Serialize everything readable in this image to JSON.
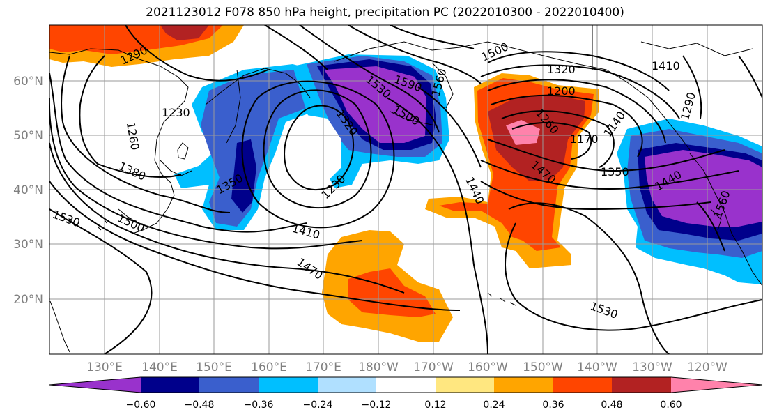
{
  "title": "2021123012 F078 850 hPa height, precipitation PC (2022010300 - 2022010400)",
  "lat_labels": [
    "60°N",
    "50°N",
    "40°N",
    "30°N",
    "20°N"
  ],
  "lon_labels": [
    "130°E",
    "140°E",
    "150°E",
    "160°E",
    "170°E",
    "180°W",
    "170°W",
    "160°W",
    "150°W",
    "140°W",
    "130°W",
    "120°W"
  ],
  "contour_labels": [
    "1290",
    "1230",
    "1260",
    "1380",
    "1350",
    "1530",
    "1500",
    "1590",
    "1530",
    "1560",
    "1320",
    "1500",
    "1230",
    "1410",
    "1440",
    "1470",
    "1500",
    "1200",
    "1260",
    "1170",
    "1140",
    "1350",
    "1470",
    "1440",
    "1560",
    "1410",
    "1290",
    "1530",
    "1320"
  ],
  "colorbar": {
    "ticks": [
      "−0.60",
      "−0.48",
      "−0.36",
      "−0.24",
      "−0.12",
      "0.12",
      "0.24",
      "0.36",
      "0.48",
      "0.60"
    ],
    "colors": [
      "#9932cc",
      "#00008b",
      "#3a5fcd",
      "#00bfff",
      "#b0e0ff",
      "#ffffff",
      "#ffe780",
      "#ffa500",
      "#ff4500",
      "#b22222",
      "#ff82ab"
    ]
  }
}
